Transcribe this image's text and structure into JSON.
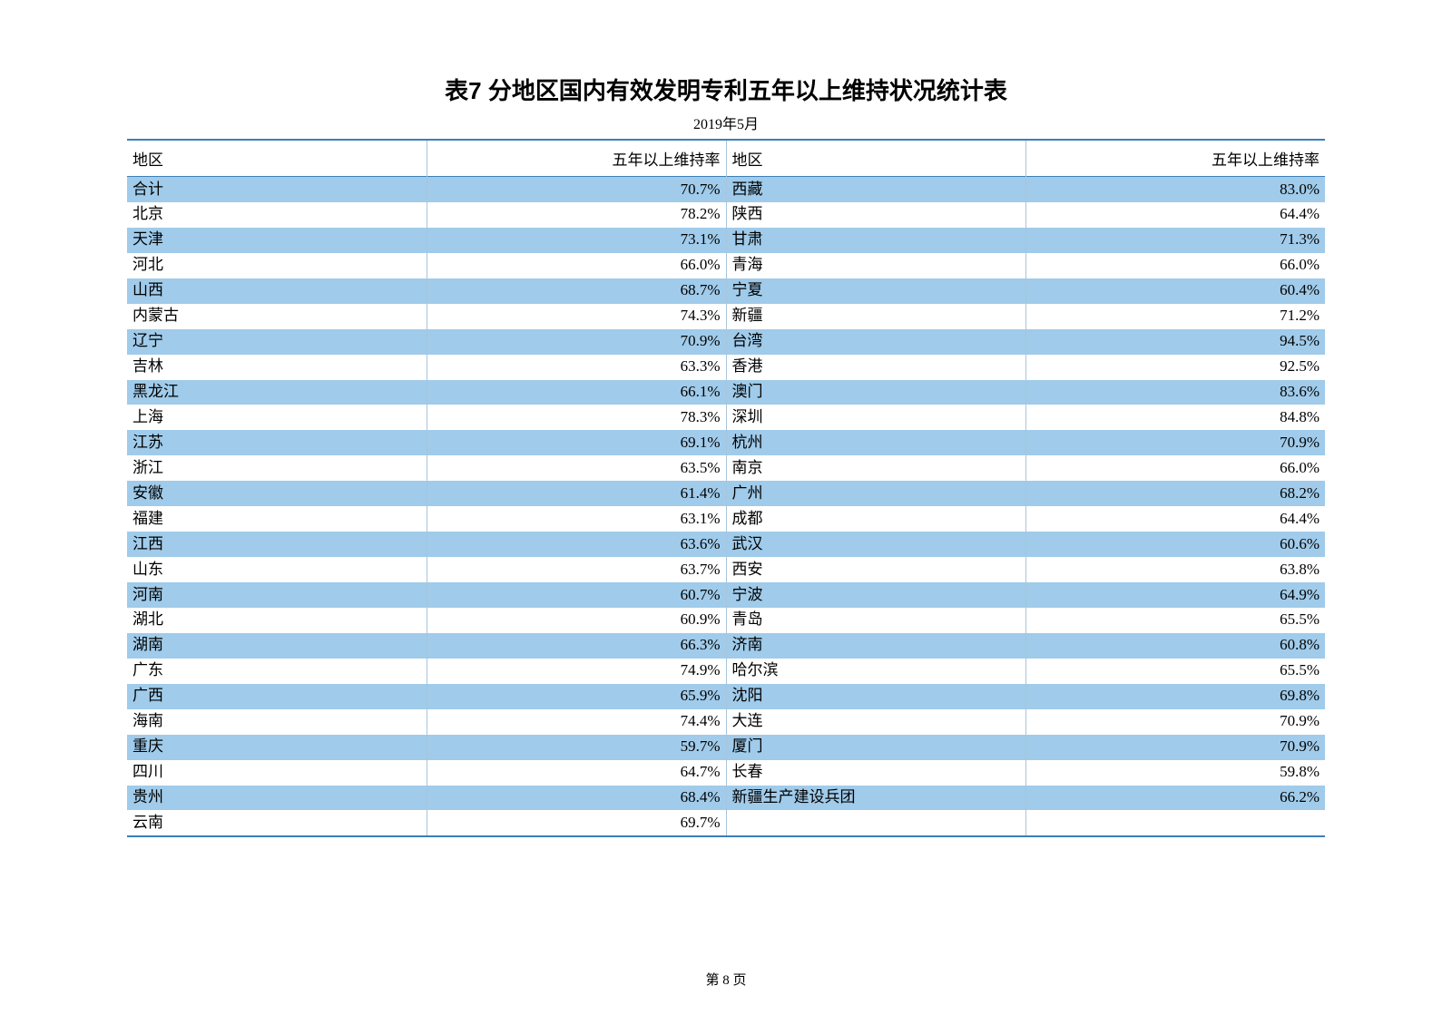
{
  "title": "表7  分地区国内有效发明专利五年以上维持状况统计表",
  "subtitle": "2019年5月",
  "footer": "第 8 页",
  "colors": {
    "shaded_row": "#a0cbea",
    "border_dark": "#3b7fb8",
    "border_light": "#a8c5dc",
    "background": "#ffffff"
  },
  "table": {
    "headers": [
      "地区",
      "五年以上维持率",
      "地区",
      "五年以上维持率"
    ],
    "col_widths_pct": [
      20,
      20,
      20,
      20
    ],
    "header_align": "center",
    "col_align": [
      "left",
      "right",
      "left",
      "right"
    ],
    "rows": [
      {
        "r1": "合计",
        "v1": "70.7%",
        "r2": "西藏",
        "v2": "83.0%",
        "shaded": true
      },
      {
        "r1": "北京",
        "v1": "78.2%",
        "r2": "陕西",
        "v2": "64.4%",
        "shaded": false
      },
      {
        "r1": "天津",
        "v1": "73.1%",
        "r2": "甘肃",
        "v2": "71.3%",
        "shaded": true
      },
      {
        "r1": "河北",
        "v1": "66.0%",
        "r2": "青海",
        "v2": "66.0%",
        "shaded": false
      },
      {
        "r1": "山西",
        "v1": "68.7%",
        "r2": "宁夏",
        "v2": "60.4%",
        "shaded": true
      },
      {
        "r1": "内蒙古",
        "v1": "74.3%",
        "r2": "新疆",
        "v2": "71.2%",
        "shaded": false
      },
      {
        "r1": "辽宁",
        "v1": "70.9%",
        "r2": "台湾",
        "v2": "94.5%",
        "shaded": true
      },
      {
        "r1": "吉林",
        "v1": "63.3%",
        "r2": "香港",
        "v2": "92.5%",
        "shaded": false
      },
      {
        "r1": "黑龙江",
        "v1": "66.1%",
        "r2": "澳门",
        "v2": "83.6%",
        "shaded": true
      },
      {
        "r1": "上海",
        "v1": "78.3%",
        "r2": "深圳",
        "v2": "84.8%",
        "shaded": false
      },
      {
        "r1": "江苏",
        "v1": "69.1%",
        "r2": "杭州",
        "v2": "70.9%",
        "shaded": true
      },
      {
        "r1": "浙江",
        "v1": "63.5%",
        "r2": "南京",
        "v2": "66.0%",
        "shaded": false
      },
      {
        "r1": "安徽",
        "v1": "61.4%",
        "r2": "广州",
        "v2": "68.2%",
        "shaded": true
      },
      {
        "r1": "福建",
        "v1": "63.1%",
        "r2": "成都",
        "v2": "64.4%",
        "shaded": false
      },
      {
        "r1": "江西",
        "v1": "63.6%",
        "r2": "武汉",
        "v2": "60.6%",
        "shaded": true
      },
      {
        "r1": "山东",
        "v1": "63.7%",
        "r2": "西安",
        "v2": "63.8%",
        "shaded": false
      },
      {
        "r1": "河南",
        "v1": "60.7%",
        "r2": "宁波",
        "v2": "64.9%",
        "shaded": true
      },
      {
        "r1": "湖北",
        "v1": "60.9%",
        "r2": "青岛",
        "v2": "65.5%",
        "shaded": false
      },
      {
        "r1": "湖南",
        "v1": "66.3%",
        "r2": "济南",
        "v2": "60.8%",
        "shaded": true
      },
      {
        "r1": "广东",
        "v1": "74.9%",
        "r2": "哈尔滨",
        "v2": "65.5%",
        "shaded": false
      },
      {
        "r1": "广西",
        "v1": "65.9%",
        "r2": "沈阳",
        "v2": "69.8%",
        "shaded": true
      },
      {
        "r1": "海南",
        "v1": "74.4%",
        "r2": "大连",
        "v2": "70.9%",
        "shaded": false
      },
      {
        "r1": "重庆",
        "v1": "59.7%",
        "r2": "厦门",
        "v2": "70.9%",
        "shaded": true
      },
      {
        "r1": "四川",
        "v1": "64.7%",
        "r2": "长春",
        "v2": "59.8%",
        "shaded": false
      },
      {
        "r1": "贵州",
        "v1": "68.4%",
        "r2": "新疆生产建设兵团",
        "v2": "66.2%",
        "shaded": true
      },
      {
        "r1": "云南",
        "v1": "69.7%",
        "r2": "",
        "v2": "",
        "shaded": false
      }
    ]
  }
}
